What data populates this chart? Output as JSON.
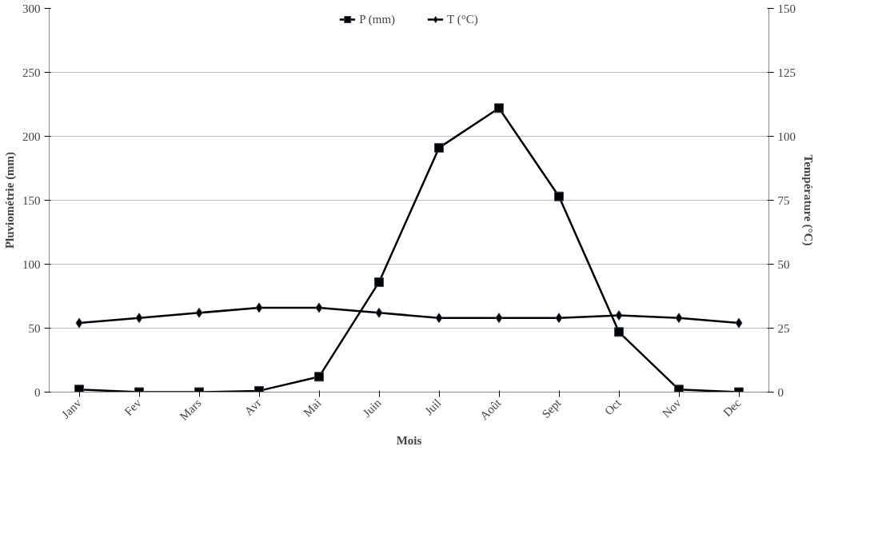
{
  "chart_data": {
    "type": "line",
    "xlabel": "Mois",
    "ylabel": "Pluviométrie (mm)",
    "y2label": "Température (°C)",
    "categories": [
      "Janv",
      "Fev",
      "Mars",
      "Avr",
      "Mai",
      "Juin",
      "Juil",
      "Août",
      "Sept",
      "Oct",
      "Nov",
      "Dec"
    ],
    "series": [
      {
        "name": "P (mm)",
        "color": "#000000",
        "marker": "square",
        "values": [
          2,
          0,
          0,
          1,
          12,
          86,
          191,
          222,
          153,
          47,
          2,
          0
        ]
      },
      {
        "name": "T (°C)",
        "color": "#000000",
        "marker": "diamond",
        "axis": "y2",
        "values": [
          27,
          29,
          31,
          33,
          33,
          31,
          29,
          29,
          29,
          30,
          29,
          27
        ]
      }
    ],
    "ylim": [
      0,
      300
    ],
    "yticks": [
      0,
      50,
      100,
      150,
      200,
      250,
      300
    ],
    "y2lim": [
      0,
      150
    ],
    "y2ticks": [
      0,
      25,
      50,
      75,
      100,
      125,
      150
    ],
    "grid": "y",
    "legend": "top",
    "line_style": "solid"
  }
}
